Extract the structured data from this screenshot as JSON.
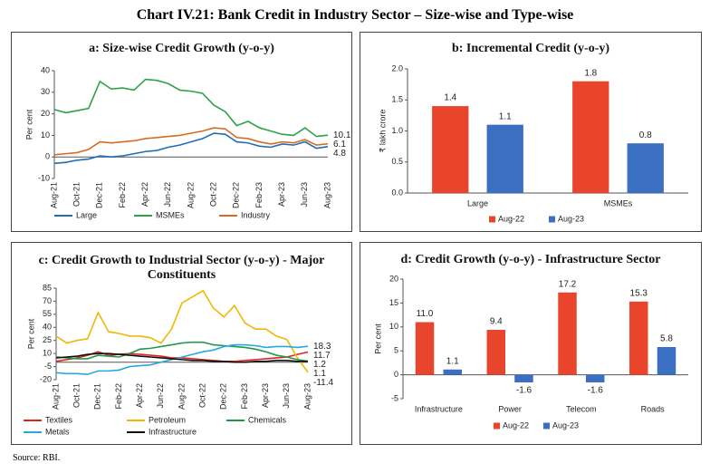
{
  "title": "Chart IV.21: Bank Credit in Industry Sector – Size-wise and Type-wise",
  "source": "Source: RBI.",
  "chart_data": [
    {
      "type": "line",
      "title": "a: Size-wise Credit Growth (y-o-y)",
      "y_label": "Per cent",
      "categories": [
        "Aug-21",
        null,
        "Oct-21",
        null,
        "Dec-21",
        null,
        "Feb-22",
        null,
        "Apr-22",
        null,
        "Jun-22",
        null,
        "Aug-22",
        null,
        "Oct-22",
        null,
        "Dec-22",
        null,
        "Feb-23",
        null,
        "Apr-23",
        null,
        "Jun-23",
        null,
        "Aug-23"
      ],
      "ylim": [
        -10,
        40
      ],
      "yticks": [
        -10,
        0,
        10,
        20,
        30,
        40
      ],
      "series": [
        {
          "name": "Large",
          "color": "#1f6db5",
          "values": [
            -3,
            -2.5,
            -1.5,
            -1,
            0.5,
            0,
            0.5,
            1.5,
            2.5,
            3,
            4.5,
            5.5,
            7,
            8.5,
            11,
            10.5,
            7,
            6.5,
            5,
            4.5,
            6,
            5.5,
            7,
            4,
            4.8
          ]
        },
        {
          "name": "MSMEs",
          "color": "#2ca24a",
          "values": [
            22,
            20.5,
            21.5,
            22.5,
            35,
            31.5,
            32,
            31,
            36,
            35.5,
            34,
            31,
            30.5,
            29.5,
            24,
            21,
            14.5,
            16.5,
            13.5,
            12,
            10.5,
            10,
            13.5,
            9.5,
            10.1
          ]
        },
        {
          "name": "Industry",
          "color": "#d86b21",
          "values": [
            1,
            1.5,
            2,
            3.5,
            7,
            6.5,
            7,
            7.5,
            8.5,
            9,
            9.5,
            10,
            11,
            12,
            13.5,
            13,
            9,
            8.5,
            7,
            6,
            7,
            6.5,
            8,
            5.5,
            6.1
          ]
        }
      ]
    },
    {
      "type": "bar",
      "title": "b: Incremental Credit (y-o-y)",
      "y_label": "₹ lakh crore",
      "categories": [
        "Large",
        "MSMEs"
      ],
      "ylim": [
        0,
        2.0
      ],
      "yticks": [
        {
          "value": 0,
          "label": "0.0"
        },
        {
          "value": 0.5,
          "label": "0.5"
        },
        {
          "value": 1,
          "label": "1.0"
        },
        {
          "value": 1.5,
          "label": "1.5"
        },
        {
          "value": 2,
          "label": "2.0"
        }
      ],
      "series": [
        {
          "name": "Aug-22",
          "color": "#e8452c",
          "values": [
            1.4,
            1.8
          ]
        },
        {
          "name": "Aug-23",
          "color": "#3a6fc1",
          "values": [
            1.1,
            0.8
          ]
        }
      ]
    },
    {
      "type": "line",
      "title": "c: Credit Growth to Industrial Sector (y-o-y) - Major Constituents",
      "y_label": "Per cent",
      "categories": [
        "Aug-21",
        null,
        "Oct-21",
        null,
        "Dec-21",
        null,
        "Feb-22",
        null,
        "Apr-22",
        null,
        "Jun-22",
        null,
        "Aug-22",
        null,
        "Oct-22",
        null,
        "Dec-22",
        null,
        "Feb-23",
        null,
        "Apr-23",
        null,
        "Jun-23",
        null,
        "Aug-23"
      ],
      "ylim": [
        -20,
        85
      ],
      "yticks": [
        -20,
        -5,
        10,
        25,
        40,
        55,
        70,
        85
      ],
      "series": [
        {
          "name": "Textiles",
          "color": "#e0251b",
          "values": [
            1,
            3,
            5,
            8,
            12,
            8,
            9,
            10,
            9,
            8,
            7,
            5,
            5,
            4,
            3,
            2,
            1,
            1,
            2,
            3,
            4,
            5,
            6,
            9,
            11.7
          ]
        },
        {
          "name": "Petroleum",
          "color": "#f2b705",
          "values": [
            30,
            22,
            25,
            27,
            57,
            35,
            33,
            30,
            30,
            28,
            22,
            38,
            68,
            75,
            82,
            62,
            52,
            65,
            45,
            38,
            38,
            30,
            26,
            5,
            -11.4
          ]
        },
        {
          "name": "Chemicals",
          "color": "#1e9a4c",
          "values": [
            6,
            5,
            4,
            4,
            8,
            7,
            6,
            10,
            15,
            16,
            18,
            20,
            22,
            23,
            23,
            20,
            19,
            18,
            17,
            15,
            12,
            8,
            6,
            3,
            1.2
          ]
        },
        {
          "name": "Metals",
          "color": "#29a8e0",
          "values": [
            -12,
            -13,
            -13,
            -14,
            -10,
            -10,
            -9,
            -5,
            -4,
            -3,
            0,
            3,
            6,
            9,
            12,
            14,
            18,
            20,
            20,
            19,
            17,
            18,
            18,
            17,
            18.3
          ]
        },
        {
          "name": "Infrastructure",
          "color": "#111111",
          "values": [
            5,
            6,
            7,
            9,
            10,
            10,
            9,
            8,
            7,
            6,
            5,
            4,
            3,
            2,
            2,
            1,
            1,
            0,
            0,
            1,
            1,
            2,
            2,
            1,
            1.1
          ]
        }
      ]
    },
    {
      "type": "bar",
      "title": "d: Credit Growth (y-o-y) - Infrastructure Sector",
      "y_label": "Per cent",
      "categories": [
        "Infrastructure",
        "Power",
        "Telecom",
        "Roads"
      ],
      "ylim": [
        -5,
        20
      ],
      "yticks": [
        -5,
        0,
        5,
        10,
        15,
        20
      ],
      "series": [
        {
          "name": "Aug-22",
          "color": "#e8452c",
          "values": [
            11,
            9.4,
            17.2,
            15.3
          ],
          "value_labels": [
            "11.0",
            "9.4",
            "17.2",
            "15.3"
          ]
        },
        {
          "name": "Aug-23",
          "color": "#3a6fc1",
          "values": [
            1.1,
            -1.6,
            -1.6,
            5.8
          ]
        }
      ]
    }
  ]
}
